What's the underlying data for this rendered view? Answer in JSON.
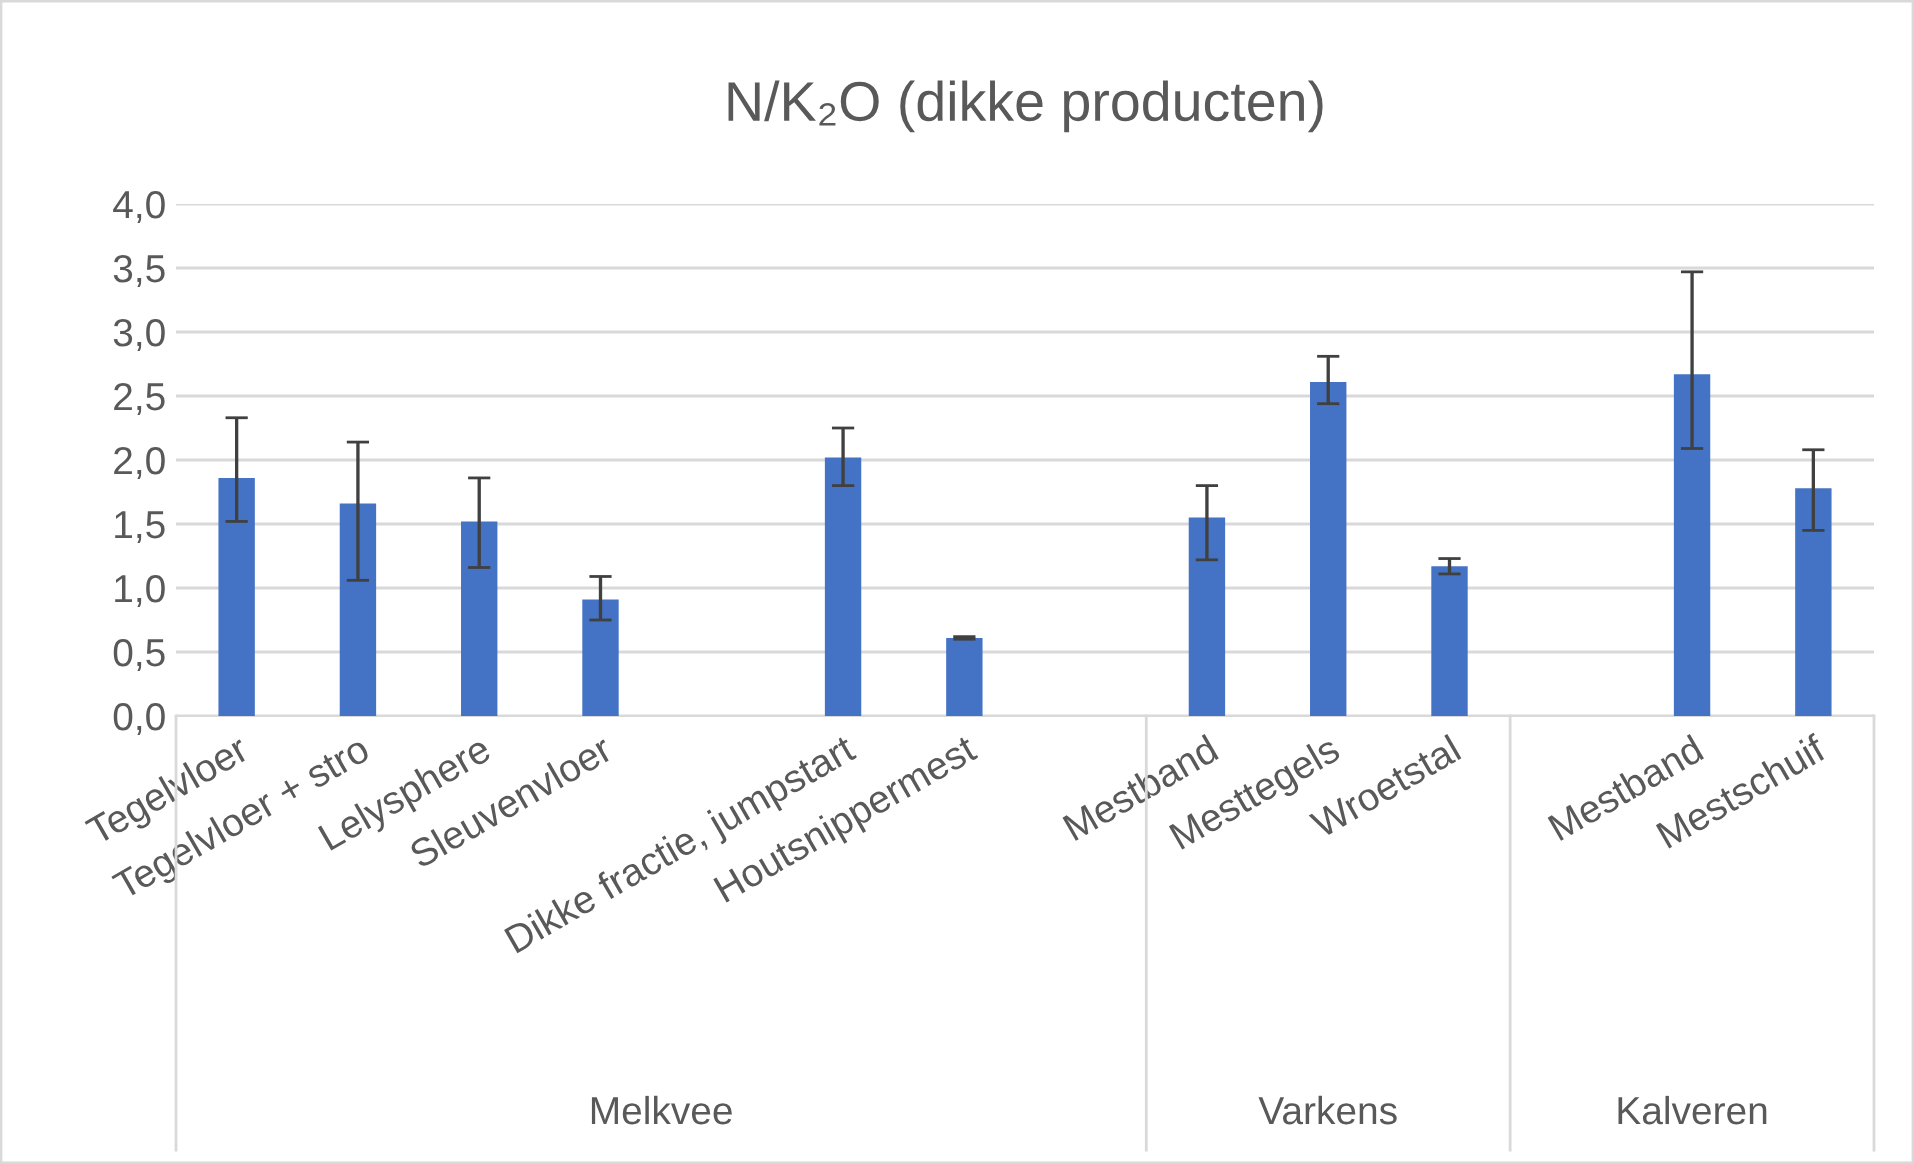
{
  "chart_data": {
    "type": "bar",
    "title": "N/K₂O (dikke producten)",
    "categories": [
      "Tegelvloer",
      "Tegelvloer + stro",
      "Lelysphere",
      "Sleuvenvloer",
      null,
      "Dikke fractie, jumpstart",
      "Houtsnippermest",
      null,
      "Mestband",
      "Mesttegels",
      "Wroetstal",
      null,
      "Mestband",
      "Mestschuif"
    ],
    "values": [
      1.86,
      1.66,
      1.52,
      0.91,
      null,
      2.02,
      0.61,
      null,
      1.55,
      2.61,
      1.17,
      null,
      2.67,
      1.78
    ],
    "errors": [
      [
        1.52,
        2.33
      ],
      [
        1.06,
        2.14
      ],
      [
        1.16,
        1.86
      ],
      [
        0.75,
        1.09
      ],
      null,
      [
        1.8,
        2.25
      ],
      [
        0.6,
        0.62
      ],
      null,
      [
        1.22,
        1.8
      ],
      [
        2.44,
        2.81
      ],
      [
        1.11,
        1.23
      ],
      null,
      [
        2.09,
        3.47
      ],
      [
        1.45,
        2.08
      ]
    ],
    "color": "#4472c4",
    "ylim": [
      0,
      4
    ],
    "yticks": [
      {
        "value": 0,
        "label": "0,0"
      },
      {
        "value": 0.5,
        "label": "0,5"
      },
      {
        "value": 1,
        "label": "1,0"
      },
      {
        "value": 1.5,
        "label": "1,5"
      },
      {
        "value": 2,
        "label": "2,0"
      },
      {
        "value": 2.5,
        "label": "2,5"
      },
      {
        "value": 3,
        "label": "3,0"
      },
      {
        "value": 3.5,
        "label": "3,5"
      },
      {
        "value": 4,
        "label": "4,0"
      }
    ],
    "grid": "y",
    "annotations": [
      "Melkvee",
      "Varkens",
      "Kalveren"
    ]
  }
}
